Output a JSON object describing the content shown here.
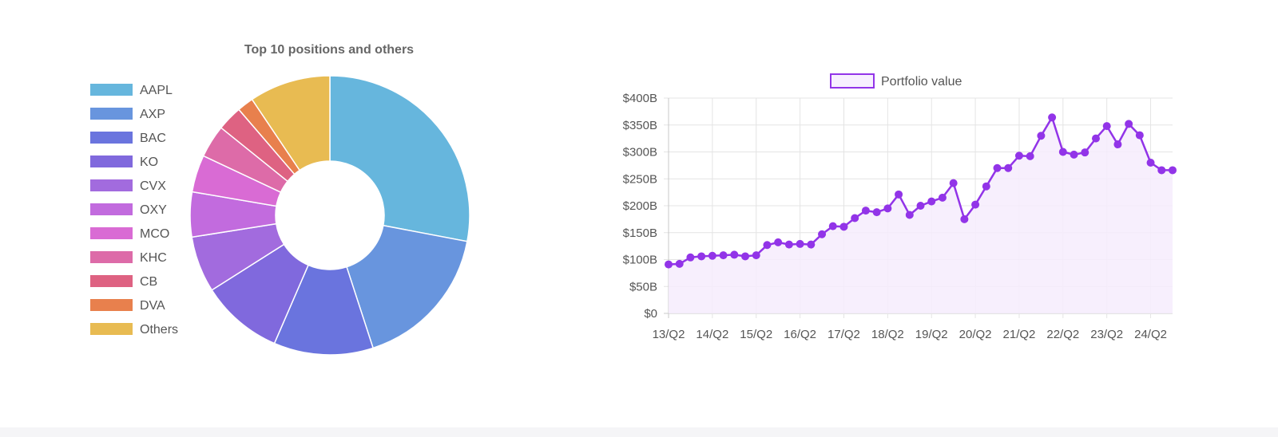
{
  "chart_data": [
    {
      "type": "pie",
      "title": "Top 10 positions and others",
      "labels": [
        "AAPL",
        "AXP",
        "BAC",
        "KO",
        "CVX",
        "OXY",
        "MCO",
        "KHC",
        "CB",
        "DVA",
        "Others"
      ],
      "values": [
        28.0,
        17.0,
        11.5,
        9.5,
        6.5,
        5.2,
        4.3,
        3.8,
        2.9,
        1.9,
        9.4
      ],
      "colors": [
        "#66b6dd",
        "#6895de",
        "#6a74de",
        "#8069dd",
        "#a26bde",
        "#c26bde",
        "#d96bd4",
        "#dd6ba8",
        "#de6282",
        "#e8804d",
        "#e8bb52"
      ],
      "legend": "left"
    },
    {
      "type": "line",
      "xlabel": "",
      "ylabel": "",
      "series": [
        {
          "name": "Portfolio value",
          "color": "#9234e8",
          "values": [
            91,
            92,
            104,
            106,
            107,
            108,
            109,
            106,
            108,
            127,
            132,
            128,
            129,
            128,
            147,
            162,
            161,
            177,
            191,
            188,
            195,
            221,
            183,
            200,
            208,
            215,
            242,
            175,
            202,
            236,
            270,
            270,
            293,
            292,
            330,
            364,
            300,
            295,
            299,
            325,
            348,
            314,
            352,
            331,
            280,
            266,
            266
          ]
        }
      ],
      "x_tick_labels": [
        "13/Q2",
        "14/Q2",
        "15/Q2",
        "16/Q2",
        "17/Q2",
        "18/Q2",
        "19/Q2",
        "20/Q2",
        "21/Q2",
        "22/Q2",
        "23/Q2",
        "24/Q2"
      ],
      "y_tick_labels": [
        "$0",
        "$50B",
        "$100B",
        "$150B",
        "$200B",
        "$250B",
        "$300B",
        "$350B",
        "$400B"
      ],
      "ylim": [
        0,
        400
      ],
      "grid": true,
      "legend": "top"
    }
  ]
}
